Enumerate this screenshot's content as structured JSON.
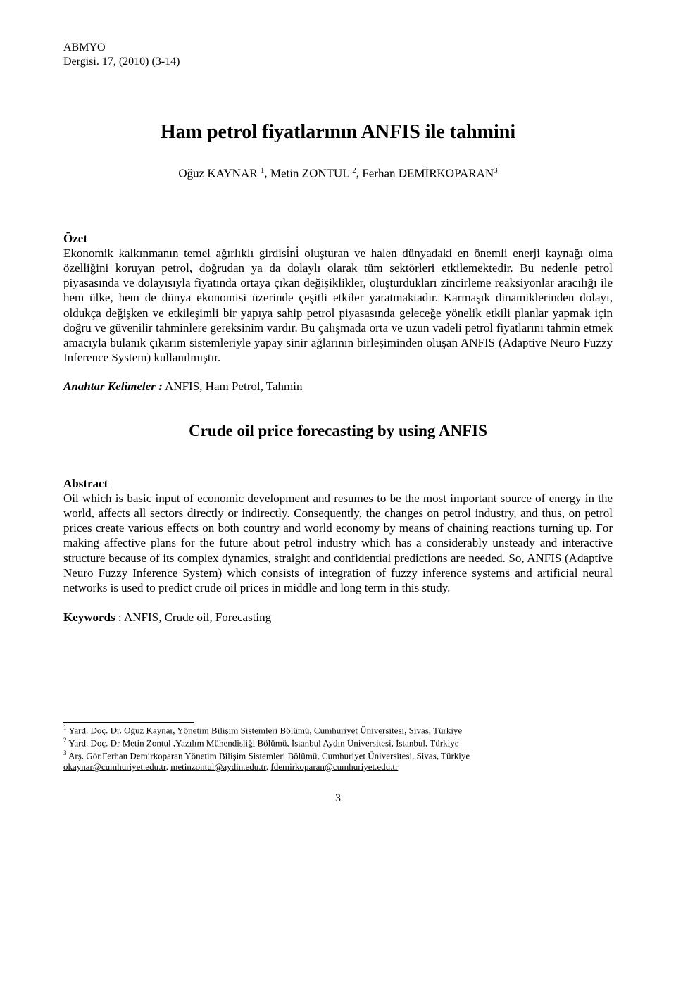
{
  "header": {
    "journal": "ABMYO",
    "issue": "Dergisi. 17, (2010) (3-14)"
  },
  "title": "Ham petrol fiyatlarının ANFIS ile tahmini",
  "authors": {
    "a1": "Oğuz KAYNAR ",
    "s1": "1",
    "sep1": ", ",
    "a2": "Metin ZONTUL ",
    "s2": "2",
    "sep2": ", ",
    "a3": "Ferhan DEMİRKOPARAN",
    "s3": "3"
  },
  "ozet": {
    "heading": "Özet",
    "body": "Ekonomik kalkınmanın temel ağırlıklı girdisi̇ni̇ oluşturan ve halen dünyadaki en önemli enerji kaynağı olma özelliğini koruyan petrol, doğrudan ya da dolaylı olarak tüm sektörleri etkilemektedir. Bu nedenle petrol piyasasında ve dolayısıyla fiyatında ortaya çıkan değişiklikler, oluşturdukları zincirleme reaksiyonlar aracılığı ile hem ülke, hem de dünya ekonomisi üzerinde çeşitli etkiler yaratmaktadır. Karmaşık dinamiklerinden dolayı, oldukça değişken ve etkileşimli bir yapıya sahip petrol piyasasında geleceğe yönelik etkili planlar yapmak için doğru ve güvenilir tahminlere gereksinim vardır. Bu çalışmada orta ve uzun vadeli petrol fiyatlarını tahmin etmek amacıyla bulanık çıkarım sistemleriyle yapay sinir ağlarının birleşiminden oluşan ANFIS (Adaptive Neuro Fuzzy Inference System)  kullanılmıştır."
  },
  "anahtar": {
    "label": "Anahtar Kelimeler :",
    "value": " ANFIS, Ham Petrol, Tahmin"
  },
  "subtitle": "Crude oil price forecasting by using ANFIS",
  "abstract": {
    "heading": "Abstract",
    "body": "Oil which is basic input of economic development and resumes to be the most important source of energy in the world, affects all sectors directly or indirectly. Consequently, the changes on petrol industry, and thus, on petrol prices create various effects on both country and world economy by means of chaining reactions turning up. For making affective plans for the future about petrol industry which has a considerably unsteady and interactive structure because of its complex dynamics, straight and confidential predictions are needed. So, ANFIS (Adaptive Neuro Fuzzy Inference System) which consists of integration of fuzzy inference systems and artificial neural networks is used to predict crude oil prices in middle and long term in this study."
  },
  "keywords": {
    "label": "Keywords",
    "value": " : ANFIS, Crude oil, Forecasting"
  },
  "footnotes": {
    "f1": {
      "num": "1",
      "pre": " Yard. Doç. Dr. ",
      "rest": "Oğuz Kaynar, Yönetim Bilişim Sistemleri Bölümü, Cumhuriyet Üniversitesi, Sivas, Türkiye"
    },
    "f2": {
      "num": "2",
      "pre": " Yard. Doç. Dr  ",
      "rest": "Metin Zontul ,Yazılım Mühendisliği Bölümü, İstanbul Aydın Üniversitesi, İstanbul, Türkiye"
    },
    "f3": {
      "num": "3",
      "pre": " Arş. Gör.",
      "rest": "Ferhan Demirkoparan Yönetim Bilişim Sistemleri Bölümü, Cumhuriyet Üniversitesi, Sivas, Türkiye"
    },
    "emails": {
      "e1": "okaynar@cumhuriyet.edu.tr",
      "c1": ", ",
      "e2": "metinzontul@aydin.edu.tr",
      "c2": ", ",
      "e3": "fdemirkoparan@cumhuriyet.edu.tr"
    }
  },
  "pagenum": "3"
}
